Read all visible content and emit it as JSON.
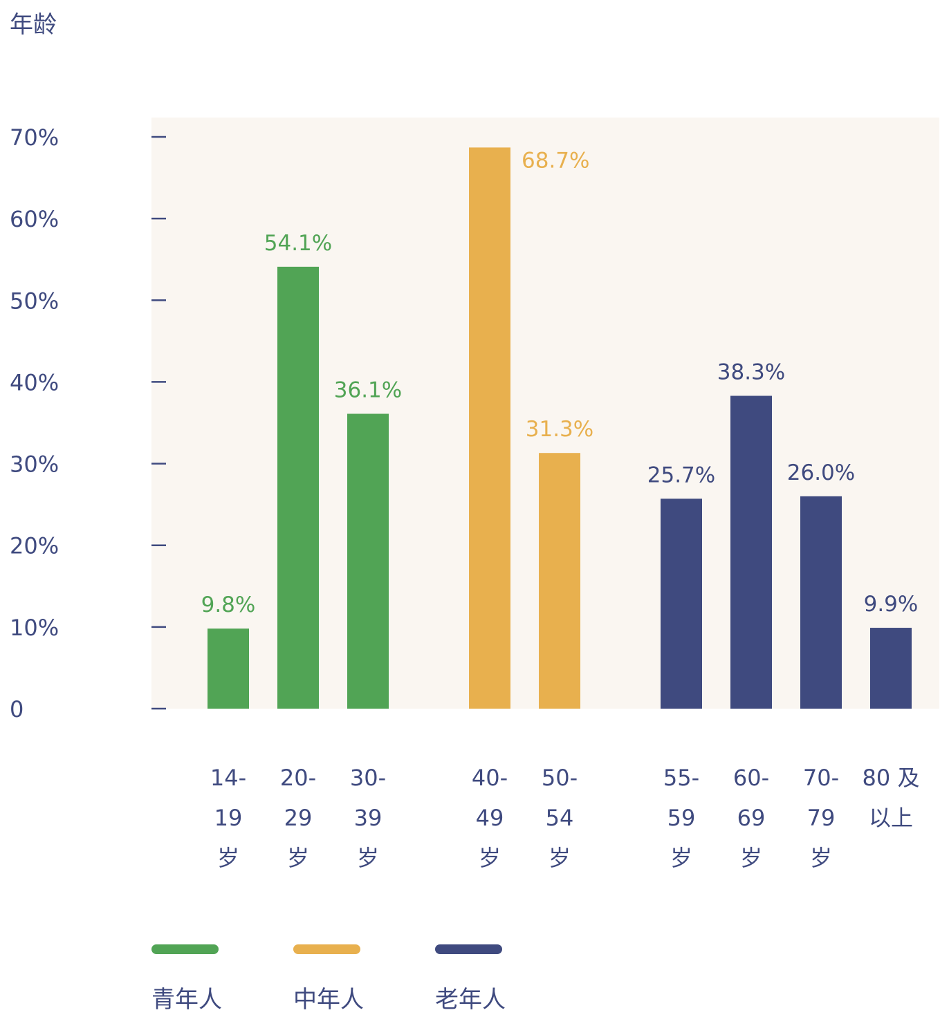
{
  "chart_data": {
    "type": "bar",
    "ylabel": "年龄",
    "ylim": [
      0,
      70
    ],
    "yticks": [
      {
        "value": 0,
        "label": "0"
      },
      {
        "value": 10,
        "label": "10%"
      },
      {
        "value": 20,
        "label": "20%"
      },
      {
        "value": 30,
        "label": "30%"
      },
      {
        "value": 40,
        "label": "40%"
      },
      {
        "value": 50,
        "label": "50%"
      },
      {
        "value": 60,
        "label": "60%"
      },
      {
        "value": 70,
        "label": "70%"
      }
    ],
    "grid": false,
    "legend_position": "bottom-left",
    "groups": [
      {
        "name": "青年人",
        "color": "#51a455",
        "bars": [
          {
            "category": [
              "14-",
              "19",
              "岁"
            ],
            "value": 9.8,
            "label": "9.8%"
          },
          {
            "category": [
              "20-",
              "29",
              "岁"
            ],
            "value": 54.1,
            "label": "54.1%"
          },
          {
            "category": [
              "30-",
              "39",
              "岁"
            ],
            "value": 36.1,
            "label": "36.1%"
          }
        ]
      },
      {
        "name": "中年人",
        "color": "#e8b04e",
        "bars": [
          {
            "category": [
              "40-",
              "49",
              "岁"
            ],
            "value": 68.7,
            "label": "68.7%"
          },
          {
            "category": [
              "50-",
              "54",
              "岁"
            ],
            "value": 31.3,
            "label": "31.3%"
          }
        ]
      },
      {
        "name": "老年人",
        "color": "#3f4a7f",
        "bars": [
          {
            "category": [
              "55-",
              "59",
              "岁"
            ],
            "value": 25.7,
            "label": "25.7%"
          },
          {
            "category": [
              "60-",
              "69",
              "岁"
            ],
            "value": 38.3,
            "label": "38.3%"
          },
          {
            "category": [
              "70-",
              "79",
              "岁"
            ],
            "value": 26.0,
            "label": "26.0%"
          },
          {
            "category": [
              "80 及",
              "以上"
            ],
            "value": 9.9,
            "label": "9.9%"
          }
        ]
      }
    ],
    "colors": {
      "plot_background": "#faf6f1",
      "axis_text": "#3f4a7f"
    }
  }
}
